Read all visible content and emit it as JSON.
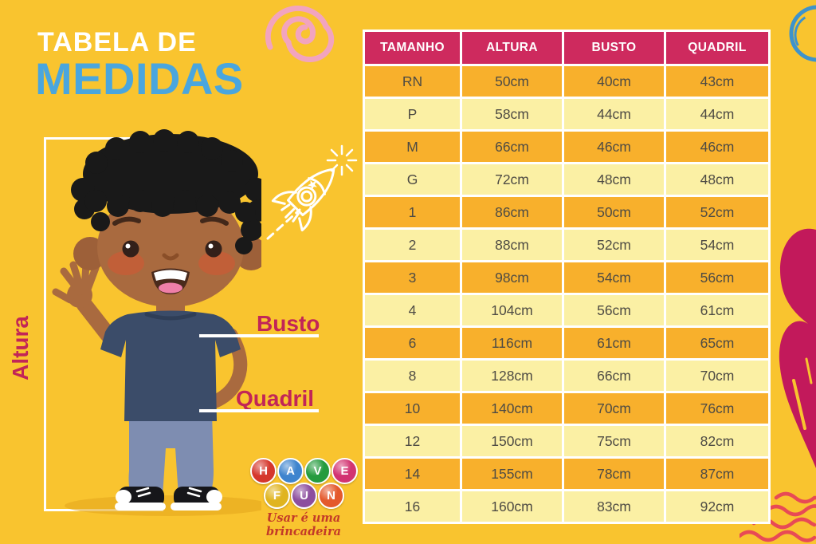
{
  "title": {
    "line1": "TABELA DE",
    "line2": "MEDIDAS"
  },
  "measure_labels": {
    "height": "Altura",
    "bust": "Busto",
    "hip": "Quadril"
  },
  "table": {
    "headers": [
      "TAMANHO",
      "ALTURA",
      "BUSTO",
      "QUADRIL"
    ],
    "rows": [
      [
        "RN",
        "50cm",
        "40cm",
        "43cm"
      ],
      [
        "P",
        "58cm",
        "44cm",
        "44cm"
      ],
      [
        "M",
        "66cm",
        "46cm",
        "46cm"
      ],
      [
        "G",
        "72cm",
        "48cm",
        "48cm"
      ],
      [
        "1",
        "86cm",
        "50cm",
        "52cm"
      ],
      [
        "2",
        "88cm",
        "52cm",
        "54cm"
      ],
      [
        "3",
        "98cm",
        "54cm",
        "56cm"
      ],
      [
        "4",
        "104cm",
        "56cm",
        "61cm"
      ],
      [
        "6",
        "116cm",
        "61cm",
        "65cm"
      ],
      [
        "8",
        "128cm",
        "66cm",
        "70cm"
      ],
      [
        "10",
        "140cm",
        "70cm",
        "76cm"
      ],
      [
        "12",
        "150cm",
        "75cm",
        "82cm"
      ],
      [
        "14",
        "155cm",
        "78cm",
        "87cm"
      ],
      [
        "16",
        "160cm",
        "83cm",
        "92cm"
      ]
    ]
  },
  "logo": {
    "letters": [
      {
        "char": "H",
        "color": "#D5372C"
      },
      {
        "char": "A",
        "color": "#3E84CE"
      },
      {
        "char": "V",
        "color": "#259B3E"
      },
      {
        "char": "E",
        "color": "#D23371"
      },
      {
        "char": "F",
        "color": "#E0B41F"
      },
      {
        "char": "U",
        "color": "#8C4E9E"
      },
      {
        "char": "N",
        "color": "#E4592C"
      }
    ],
    "tagline": "Usar é uma brincadeira"
  },
  "decorations": [
    "pink-spiral",
    "rocket-doodle",
    "blue-circle",
    "magenta-heart",
    "red-waves"
  ],
  "colors": {
    "background": "#F9C42F",
    "header_pink": "#CE2A5E",
    "row_orange": "#F8B02C",
    "row_pale_yellow": "#FBF0A4",
    "cell_text": "#4E4B44",
    "title_blue": "#4AA6DE",
    "label_crimson": "#C22557",
    "wave_red": "#E84A55",
    "spiral_pink": "#F2A4BE",
    "circle_blue": "#3E93CC",
    "heart_magenta": "#C2195B"
  },
  "chart_data": {
    "type": "table",
    "title": "Tabela de Medidas",
    "columns": [
      "TAMANHO",
      "ALTURA",
      "BUSTO",
      "QUADRIL"
    ],
    "rows": [
      [
        "RN",
        "50cm",
        "40cm",
        "43cm"
      ],
      [
        "P",
        "58cm",
        "44cm",
        "44cm"
      ],
      [
        "M",
        "66cm",
        "46cm",
        "46cm"
      ],
      [
        "G",
        "72cm",
        "48cm",
        "48cm"
      ],
      [
        "1",
        "86cm",
        "50cm",
        "52cm"
      ],
      [
        "2",
        "88cm",
        "52cm",
        "54cm"
      ],
      [
        "3",
        "98cm",
        "54cm",
        "56cm"
      ],
      [
        "4",
        "104cm",
        "56cm",
        "61cm"
      ],
      [
        "6",
        "116cm",
        "61cm",
        "65cm"
      ],
      [
        "8",
        "128cm",
        "66cm",
        "70cm"
      ],
      [
        "10",
        "140cm",
        "70cm",
        "76cm"
      ],
      [
        "12",
        "150cm",
        "75cm",
        "82cm"
      ],
      [
        "14",
        "155cm",
        "78cm",
        "87cm"
      ],
      [
        "16",
        "160cm",
        "83cm",
        "92cm"
      ]
    ]
  }
}
